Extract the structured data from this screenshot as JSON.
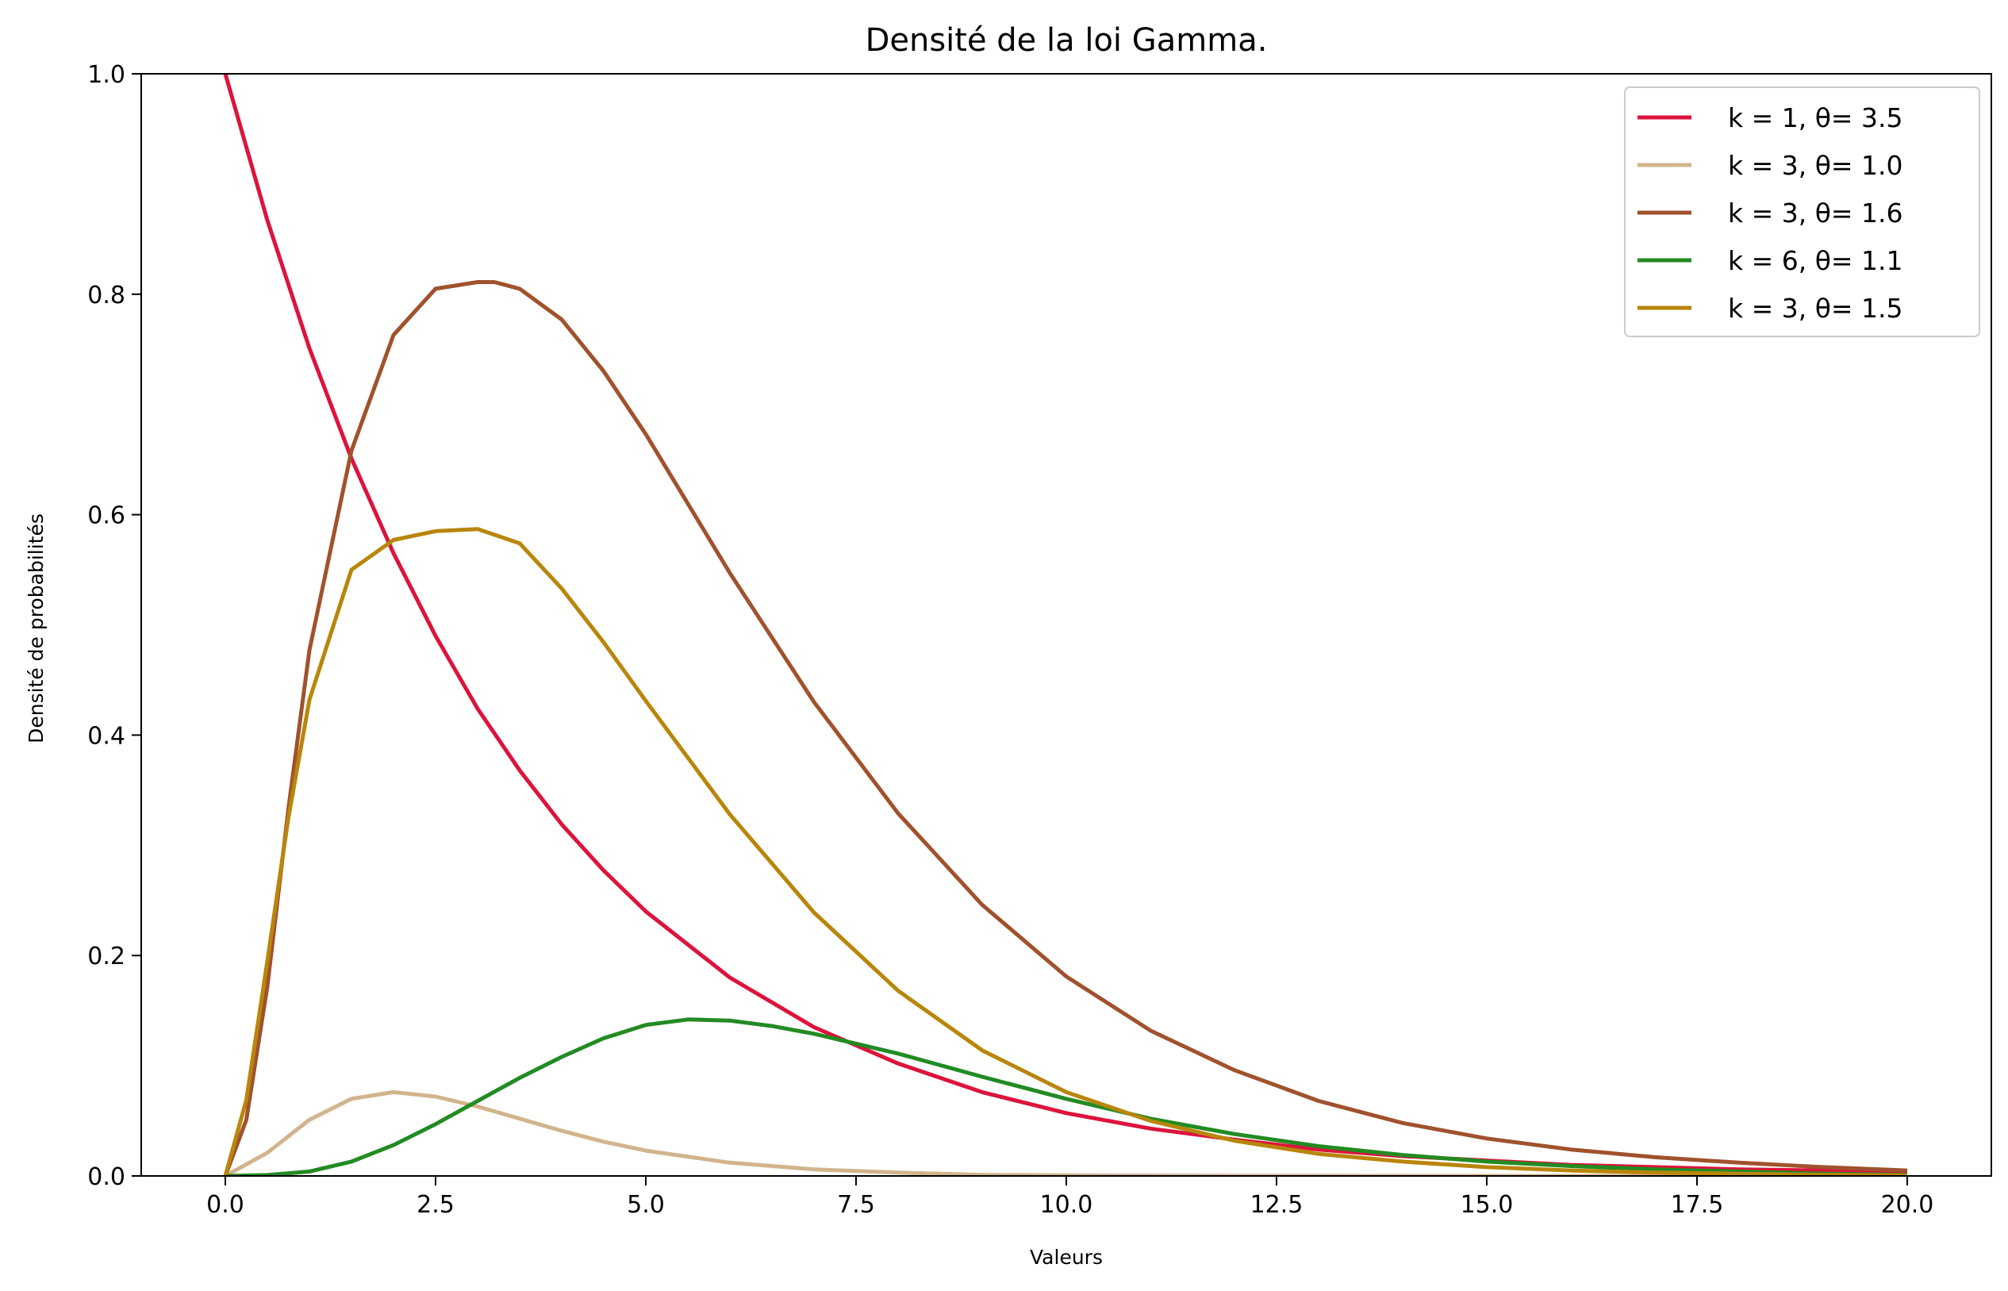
{
  "chart_data": {
    "type": "line",
    "title": "Densité de la loi Gamma.",
    "xlabel": "Valeurs",
    "ylabel": "Densité de probabilités",
    "xlim": [
      -1.0,
      21.0
    ],
    "ylim": [
      0.0,
      1.0
    ],
    "x_ticks": [
      0.0,
      2.5,
      5.0,
      7.5,
      10.0,
      12.5,
      15.0,
      17.5,
      20.0
    ],
    "x_tick_labels": [
      "0.0",
      "2.5",
      "5.0",
      "7.5",
      "10.0",
      "12.5",
      "15.0",
      "17.5",
      "20.0"
    ],
    "y_ticks": [
      0.0,
      0.2,
      0.4,
      0.6,
      0.8,
      1.0
    ],
    "y_tick_labels": [
      "0.0",
      "0.2",
      "0.4",
      "0.6",
      "0.8",
      "1.0"
    ],
    "grid": false,
    "legend_position": "top-right",
    "series": [
      {
        "name": "k = 1,  θ= 3.5",
        "color": "#dc143c",
        "x": [
          0,
          0.5,
          1,
          1.5,
          2,
          2.5,
          3,
          3.5,
          4,
          4.5,
          5,
          6,
          7,
          8,
          9,
          10,
          11,
          12,
          13,
          14,
          15,
          16,
          17,
          18,
          19,
          20
        ],
        "y": [
          1.0,
          0.867,
          0.751,
          0.651,
          0.565,
          0.49,
          0.424,
          0.368,
          0.319,
          0.277,
          0.24,
          0.18,
          0.135,
          0.102,
          0.076,
          0.057,
          0.043,
          0.033,
          0.024,
          0.018,
          0.014,
          0.01,
          0.008,
          0.006,
          0.005,
          0.003
        ]
      },
      {
        "name": "k = 3,  θ= 1.0",
        "color": "#d2b48c",
        "x": [
          0,
          0.5,
          1,
          1.5,
          2,
          2.5,
          3,
          3.5,
          4,
          4.5,
          5,
          6,
          7,
          8,
          9,
          10,
          12,
          15,
          20
        ],
        "y": [
          0.0,
          0.021,
          0.051,
          0.07,
          0.076,
          0.072,
          0.063,
          0.052,
          0.041,
          0.031,
          0.023,
          0.012,
          0.006,
          0.003,
          0.001,
          0.0005,
          0.0001,
          0.0,
          0.0
        ]
      },
      {
        "name": "k = 3,  θ= 1.6",
        "color": "#a0522d",
        "x": [
          0,
          0.25,
          0.5,
          0.75,
          1,
          1.5,
          2,
          2.5,
          3,
          3.2,
          3.5,
          4,
          4.5,
          5,
          6,
          7,
          8,
          9,
          10,
          11,
          12,
          13,
          14,
          15,
          16,
          17,
          18,
          19,
          20
        ],
        "y": [
          0.0,
          0.051,
          0.172,
          0.333,
          0.477,
          0.658,
          0.763,
          0.805,
          0.811,
          0.811,
          0.805,
          0.777,
          0.73,
          0.673,
          0.547,
          0.43,
          0.329,
          0.246,
          0.181,
          0.132,
          0.096,
          0.068,
          0.048,
          0.034,
          0.024,
          0.017,
          0.012,
          0.008,
          0.005
        ]
      },
      {
        "name": "k = 6,  θ= 1.1",
        "color": "#228b22",
        "x": [
          0,
          0.5,
          1,
          1.5,
          2,
          2.5,
          3,
          3.5,
          4,
          4.5,
          5,
          5.5,
          6,
          6.5,
          7,
          8,
          9,
          10,
          11,
          12,
          13,
          14,
          15,
          16,
          17,
          18,
          19,
          20
        ],
        "y": [
          0.0,
          0.0008,
          0.004,
          0.013,
          0.028,
          0.047,
          0.068,
          0.089,
          0.108,
          0.125,
          0.137,
          0.142,
          0.141,
          0.136,
          0.129,
          0.111,
          0.09,
          0.07,
          0.052,
          0.038,
          0.027,
          0.019,
          0.013,
          0.009,
          0.006,
          0.004,
          0.002,
          0.001
        ]
      },
      {
        "name": "k = 3,  θ= 1.5",
        "color": "#b8860b",
        "x": [
          0,
          0.25,
          0.5,
          0.75,
          1,
          1.5,
          2,
          2.5,
          3,
          3.5,
          4,
          4.5,
          5,
          6,
          7,
          8,
          9,
          10,
          11,
          12,
          13,
          14,
          15,
          16,
          17,
          18,
          19,
          20
        ],
        "y": [
          0.0,
          0.069,
          0.195,
          0.325,
          0.432,
          0.55,
          0.577,
          0.585,
          0.587,
          0.574,
          0.533,
          0.484,
          0.431,
          0.328,
          0.239,
          0.168,
          0.114,
          0.076,
          0.05,
          0.032,
          0.02,
          0.013,
          0.008,
          0.005,
          0.003,
          0.002,
          0.001,
          0.0006
        ]
      }
    ]
  }
}
